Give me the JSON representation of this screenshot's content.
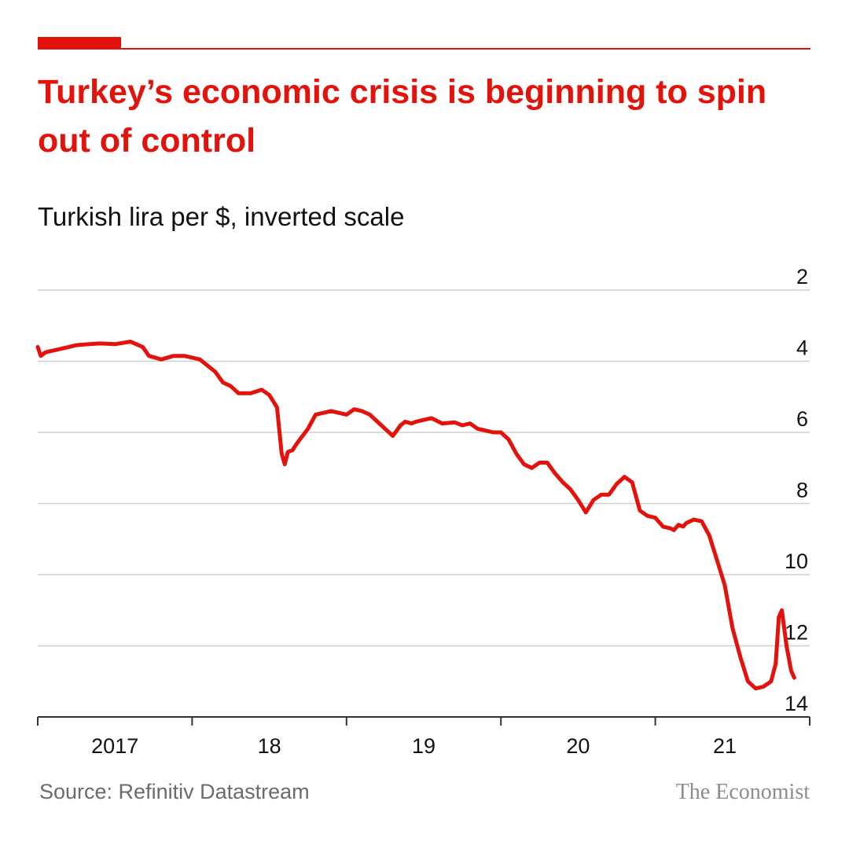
{
  "header": {
    "title": "Turkey’s economic crisis is beginning to spin out of control",
    "subtitle": "Turkish lira per $, inverted scale"
  },
  "footer": {
    "source": "Source: Refinitiv Datastream",
    "brand": "The Economist"
  },
  "colors": {
    "accent": "#e3120b",
    "line": "#e3120b",
    "grid": "#cfcfcf",
    "axis": "#333333",
    "text": "#111111"
  },
  "chart_data": {
    "type": "line",
    "title": "Turkey’s economic crisis is beginning to spin out of control",
    "subtitle": "Turkish lira per $, inverted scale",
    "xlabel": "",
    "ylabel": "Turkish lira per $",
    "y_inverted": true,
    "ylim": [
      2,
      14
    ],
    "xlim": [
      2017.0,
      2022.0
    ],
    "y_ticks": [
      2,
      4,
      6,
      8,
      10,
      12,
      14
    ],
    "x_tick_positions": [
      2017,
      2018,
      2019,
      2020,
      2021,
      2022
    ],
    "x_tick_labels": [
      {
        "label": "2017",
        "x": 2017.5
      },
      {
        "label": "18",
        "x": 2018.5
      },
      {
        "label": "19",
        "x": 2019.5
      },
      {
        "label": "20",
        "x": 2020.5
      },
      {
        "label": "21",
        "x": 2021.45
      }
    ],
    "grid": true,
    "series": [
      {
        "name": "Turkish lira per $",
        "x": [
          2017.0,
          2017.02,
          2017.05,
          2017.1,
          2017.15,
          2017.2,
          2017.25,
          2017.3,
          2017.4,
          2017.5,
          2017.6,
          2017.68,
          2017.72,
          2017.8,
          2017.88,
          2017.95,
          2018.05,
          2018.15,
          2018.2,
          2018.25,
          2018.3,
          2018.38,
          2018.45,
          2018.5,
          2018.55,
          2018.58,
          2018.6,
          2018.62,
          2018.65,
          2018.68,
          2018.75,
          2018.8,
          2018.9,
          2019.0,
          2019.05,
          2019.1,
          2019.15,
          2019.2,
          2019.25,
          2019.3,
          2019.35,
          2019.38,
          2019.42,
          2019.45,
          2019.5,
          2019.55,
          2019.62,
          2019.7,
          2019.75,
          2019.8,
          2019.85,
          2019.9,
          2019.95,
          2020.0,
          2020.05,
          2020.1,
          2020.15,
          2020.2,
          2020.25,
          2020.3,
          2020.35,
          2020.4,
          2020.45,
          2020.5,
          2020.55,
          2020.6,
          2020.65,
          2020.7,
          2020.75,
          2020.8,
          2020.85,
          2020.9,
          2020.95,
          2021.0,
          2021.05,
          2021.1,
          2021.12,
          2021.15,
          2021.18,
          2021.2,
          2021.25,
          2021.3,
          2021.35,
          2021.4,
          2021.45,
          2021.5,
          2021.55,
          2021.6,
          2021.65,
          2021.7,
          2021.75,
          2021.78,
          2021.8,
          2021.82,
          2021.85,
          2021.88,
          2021.9
        ],
        "values": [
          3.6,
          3.85,
          3.75,
          3.7,
          3.65,
          3.6,
          3.55,
          3.53,
          3.5,
          3.52,
          3.45,
          3.6,
          3.85,
          3.95,
          3.85,
          3.85,
          3.95,
          4.3,
          4.6,
          4.7,
          4.9,
          4.9,
          4.8,
          4.95,
          5.3,
          6.6,
          6.9,
          6.55,
          6.5,
          6.3,
          5.9,
          5.5,
          5.4,
          5.5,
          5.35,
          5.4,
          5.5,
          5.7,
          5.9,
          6.1,
          5.8,
          5.7,
          5.75,
          5.7,
          5.65,
          5.6,
          5.75,
          5.72,
          5.8,
          5.75,
          5.9,
          5.95,
          6.0,
          6.0,
          6.2,
          6.6,
          6.9,
          7.0,
          6.85,
          6.85,
          7.15,
          7.4,
          7.6,
          7.9,
          8.25,
          7.9,
          7.75,
          7.75,
          7.45,
          7.25,
          7.4,
          8.2,
          8.35,
          8.4,
          8.65,
          8.7,
          8.75,
          8.6,
          8.65,
          8.55,
          8.45,
          8.5,
          8.9,
          9.6,
          10.3,
          11.5,
          12.3,
          13.0,
          13.2,
          13.15,
          13.0,
          12.5,
          11.2,
          11.0,
          12.0,
          12.7,
          12.9
        ]
      }
    ]
  }
}
